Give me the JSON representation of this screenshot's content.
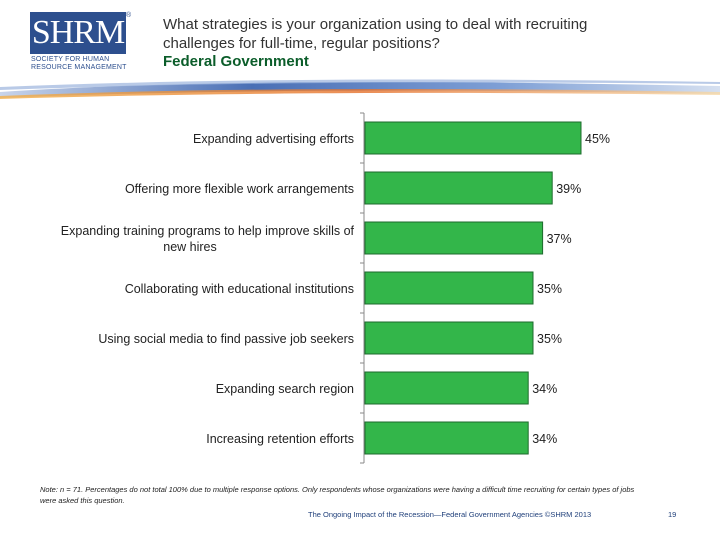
{
  "logo": {
    "text": "SHRM",
    "sub": [
      "SOCIETY FOR HUMAN",
      "RESOURCE MANAGEMENT"
    ],
    "registered": "®"
  },
  "header": {
    "title": "What strategies is your organization using to deal with recruiting challenges for full-time, regular positions?",
    "subtitle": "Federal Government"
  },
  "colors": {
    "bar": "#33b64a",
    "bar_stroke": "#1d6b2c",
    "subtitle": "#0b5d2a",
    "logo": "#2d4f8e"
  },
  "chart_data": {
    "type": "bar",
    "orientation": "horizontal",
    "categories": [
      [
        "Expanding advertising efforts"
      ],
      [
        "Offering more flexible work arrangements"
      ],
      [
        "Expanding training programs to help improve skills of",
        "new hires"
      ],
      [
        "Collaborating with educational institutions"
      ],
      [
        "Using social media to find passive job seekers"
      ],
      [
        "Expanding search region"
      ],
      [
        "Increasing retention efforts"
      ]
    ],
    "values": [
      45,
      39,
      37,
      35,
      35,
      34,
      34
    ],
    "data_labels": [
      "45%",
      "39%",
      "37%",
      "35%",
      "35%",
      "34%",
      "34%"
    ],
    "unit": "%",
    "xlim": [
      0,
      100
    ],
    "grid": false,
    "legend": "none"
  },
  "note": "Note: n = 71. Percentages do not total 100% due to multiple response options. Only respondents whose organizations were having a difficult time recruiting for certain types of jobs were asked this question.",
  "footer": {
    "text": "The Ongoing Impact of the Recession—Federal Government Agencies ©SHRM 2013",
    "page": "19"
  }
}
